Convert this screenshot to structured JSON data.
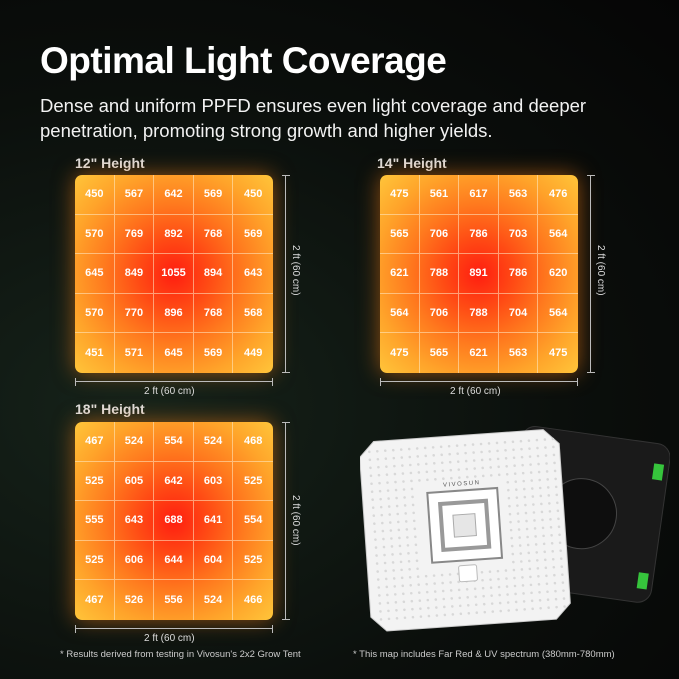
{
  "title": "Optimal Light Coverage",
  "subtitle": "Dense and uniform PPFD ensures even light coverage and deeper penetration, promoting strong growth and higher yields.",
  "maps": [
    {
      "label": "12\" Height",
      "width_label": "2 ft (60 cm)",
      "height_label": "2 ft (60 cm)",
      "values": [
        [
          450,
          567,
          642,
          569,
          450
        ],
        [
          570,
          769,
          892,
          768,
          569
        ],
        [
          645,
          849,
          1055,
          894,
          643
        ],
        [
          570,
          770,
          896,
          768,
          568
        ],
        [
          451,
          571,
          645,
          569,
          449
        ]
      ]
    },
    {
      "label": "14\" Height",
      "width_label": "2 ft (60 cm)",
      "height_label": "2 ft (60 cm)",
      "values": [
        [
          475,
          561,
          617,
          563,
          476
        ],
        [
          565,
          706,
          786,
          703,
          564
        ],
        [
          621,
          788,
          891,
          786,
          620
        ],
        [
          564,
          706,
          788,
          704,
          564
        ],
        [
          475,
          565,
          621,
          563,
          475
        ]
      ]
    },
    {
      "label": "18\" Height",
      "width_label": "2 ft (60 cm)",
      "height_label": "2 ft (60 cm)",
      "values": [
        [
          467,
          524,
          554,
          524,
          468
        ],
        [
          525,
          605,
          642,
          603,
          525
        ],
        [
          555,
          643,
          688,
          641,
          554
        ],
        [
          525,
          606,
          644,
          604,
          525
        ],
        [
          467,
          526,
          556,
          524,
          466
        ]
      ]
    }
  ],
  "product": {
    "brand": "VIVOSUN"
  },
  "notes": {
    "left": "* Results derived from testing in Vivosun's 2x2 Grow Tent",
    "right": "* This map includes Far Red & UV spectrum (380mm-780mm)"
  }
}
